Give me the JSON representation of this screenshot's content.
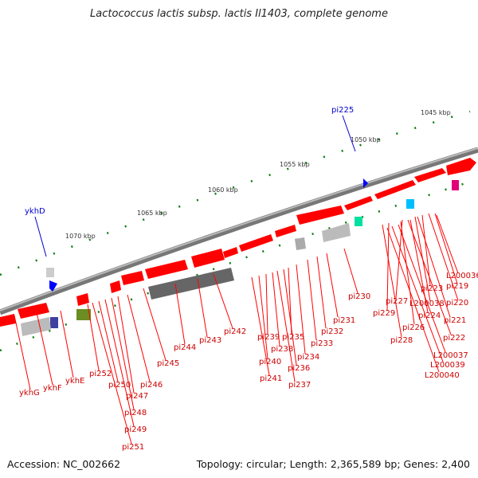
{
  "title": "Lactococcus lactis subsp. lactis Il1403, complete genome",
  "footer": {
    "accession": "Accession: NC_002662",
    "summary": "Topology: circular; Length: 2,365,589 bp; Genes: 2,400"
  },
  "scale_labels": [
    "1045 kbp",
    "1050 kbp",
    "1055 kbp",
    "1060 kbp",
    "1065 kbp",
    "1070 kbp"
  ],
  "blue_labels": [
    "pi225",
    "ykhD"
  ],
  "gene_labels": [
    "L200036",
    "pi219",
    "pi223",
    "L200038",
    "pi220",
    "pi227",
    "pi224",
    "pi221",
    "pi229",
    "pi226",
    "pi222",
    "pi228",
    "L200037",
    "L200039",
    "L200040",
    "pi230",
    "pi231",
    "pi232",
    "pi233",
    "pi234",
    "pi235",
    "pi236",
    "pi237",
    "pi238",
    "pi239",
    "pi240",
    "pi241",
    "pi242",
    "pi243",
    "pi244",
    "pi245",
    "pi246",
    "pi247",
    "pi248",
    "pi249",
    "pi250",
    "pi251",
    "pi252",
    "ykhE",
    "ykhF",
    "ykhG"
  ],
  "colors": {
    "cds": "#ff0000",
    "backbone": "#888888",
    "label_red": "#cc0000",
    "label_blue": "#0000cc",
    "tick": "#0a7a0a"
  }
}
